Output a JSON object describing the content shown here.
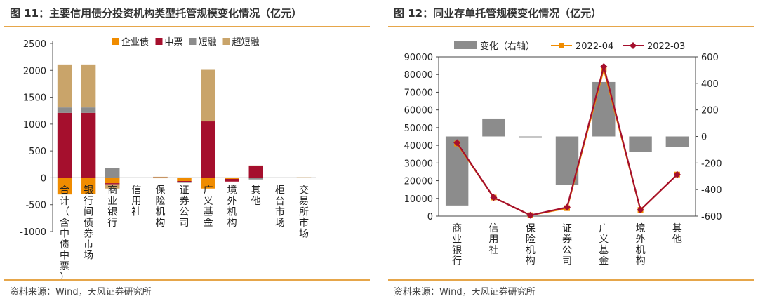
{
  "left": {
    "title": "图 11：主要信用债分投资机构类型托管规模变化情况（亿元）",
    "source": "资料来源：Wind，天风证券研究所"
  },
  "right": {
    "title": "图 12：同业存单托管规模变化情况（亿元）",
    "source": "资料来源：Wind，天风证券研究所"
  },
  "chart_data": [
    {
      "type": "bar",
      "stacked": true,
      "categories": [
        "合计（含中债中票）",
        "银行间债券市场",
        "商业银行",
        "信用社",
        "保险机构",
        "证券公司",
        "广义基金",
        "境外机构",
        "其他",
        "柜台市场",
        "交易所市场"
      ],
      "series": [
        {
          "name": "企业债",
          "color": "#f08c00",
          "values": [
            -310,
            -300,
            -100,
            0,
            5,
            -60,
            -200,
            -20,
            0,
            0,
            0
          ]
        },
        {
          "name": "中票",
          "color": "#a50f2d",
          "values": [
            1210,
            1210,
            -20,
            0,
            10,
            -20,
            1050,
            -50,
            220,
            0,
            0
          ]
        },
        {
          "name": "短融",
          "color": "#8c8c8c",
          "values": [
            100,
            100,
            180,
            0,
            0,
            -10,
            0,
            0,
            -30,
            0,
            0
          ]
        },
        {
          "name": "超短融",
          "color": "#c9a46a",
          "values": [
            800,
            800,
            -80,
            0,
            5,
            0,
            960,
            0,
            10,
            0,
            10
          ]
        }
      ],
      "ylim": [
        -1000,
        2500
      ],
      "yticks": [
        -1000,
        -500,
        0,
        500,
        1000,
        1500,
        2000,
        2500
      ],
      "legend": "top"
    },
    {
      "type": "bar+line",
      "categories": [
        "商业银行",
        "信用社",
        "保险机构",
        "证券公司",
        "广义基金",
        "境外机构",
        "其他"
      ],
      "bar_series": {
        "name": "变化（右轴）",
        "color": "#8c8c8c",
        "axis": "right",
        "values": [
          -520,
          135,
          -3,
          -365,
          410,
          -115,
          -80
        ]
      },
      "line_series": [
        {
          "name": "2022-04",
          "color": "#f08c00",
          "marker": "square",
          "axis": "left",
          "values": [
            41000,
            10500,
            500,
            4500,
            83000,
            3500,
            23500
          ]
        },
        {
          "name": "2022-03",
          "color": "#a50f2d",
          "marker": "diamond",
          "axis": "left",
          "values": [
            41500,
            10500,
            500,
            5000,
            84500,
            3500,
            23500
          ]
        }
      ],
      "ylim_left": [
        0,
        90000
      ],
      "yticks_left": [
        0,
        10000,
        20000,
        30000,
        40000,
        50000,
        60000,
        70000,
        80000,
        90000
      ],
      "ylim_right": [
        -600,
        600
      ],
      "yticks_right": [
        -600,
        -400,
        -200,
        0,
        200,
        400,
        600
      ],
      "legend": "top"
    }
  ]
}
